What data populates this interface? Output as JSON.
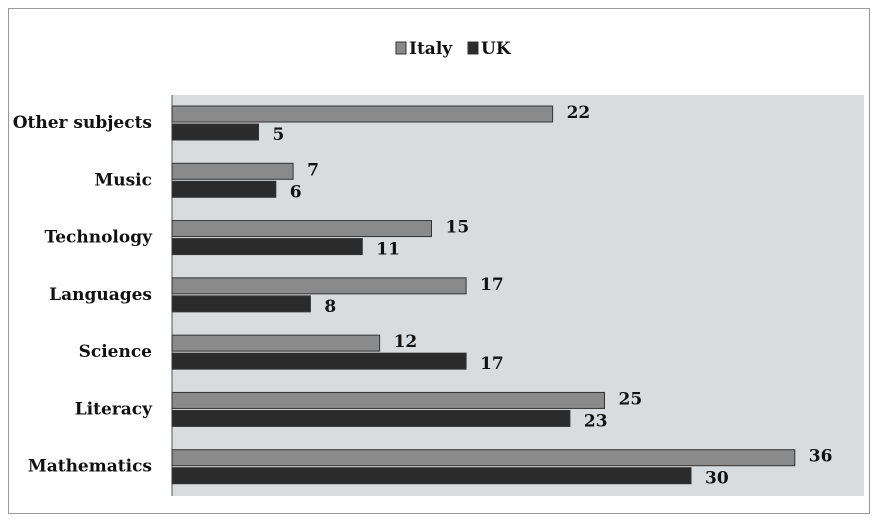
{
  "chart_data": {
    "type": "bar",
    "orientation": "horizontal",
    "categories": [
      "Other subjects",
      "Music",
      "Technology",
      "Languages",
      "Science",
      "Literacy",
      "Mathematics"
    ],
    "series": [
      {
        "name": "Italy",
        "values": [
          22,
          7,
          15,
          17,
          12,
          25,
          36
        ],
        "color": "#8a8a8a"
      },
      {
        "name": "UK",
        "values": [
          5,
          6,
          11,
          8,
          17,
          23,
          30
        ],
        "color": "#2b2b2b"
      }
    ],
    "xlim": [
      0,
      40
    ],
    "grid": false,
    "legend_position": "top-center",
    "plot_background": "#d9dcdf"
  }
}
